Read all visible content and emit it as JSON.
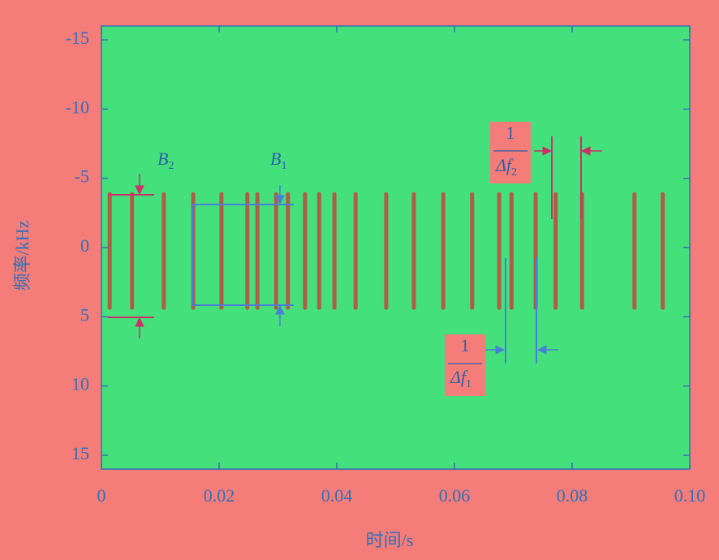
{
  "chart_data": {
    "type": "spectrogram",
    "x_label": "时间/s",
    "y_label": "频率/kHz",
    "xlim": [
      0,
      0.1
    ],
    "xticks": [
      0,
      0.02,
      0.04,
      0.06,
      0.08,
      {
        "value": 0.1,
        "label": "0.10"
      }
    ],
    "ylim": [
      -16,
      16
    ],
    "yticks": [
      -15,
      -10,
      -5,
      0,
      5,
      10,
      15
    ],
    "y_inverted": true,
    "background_color": "#44e07c",
    "pulses": {
      "color": "#c2453e",
      "x": [
        0.0014,
        0.0052,
        0.0106,
        0.0156,
        0.0204,
        0.0248,
        0.0265,
        0.0297,
        0.0317,
        0.0346,
        0.037,
        0.0396,
        0.0432,
        0.0484,
        0.0531,
        0.0581,
        0.063,
        0.0676,
        0.0697,
        0.0738,
        0.0772,
        0.0817,
        0.0906,
        0.0954
      ],
      "band": [
        -4,
        4.5
      ]
    },
    "annotations": {
      "b2": {
        "main": "B",
        "sub": "2"
      },
      "b1": {
        "main": "B",
        "sub": "1"
      },
      "df2": {
        "numerator": "1",
        "denominator": "Δf",
        "sub": "2"
      },
      "df1": {
        "numerator": "1",
        "denominator": "Δf",
        "sub": "1"
      }
    }
  }
}
